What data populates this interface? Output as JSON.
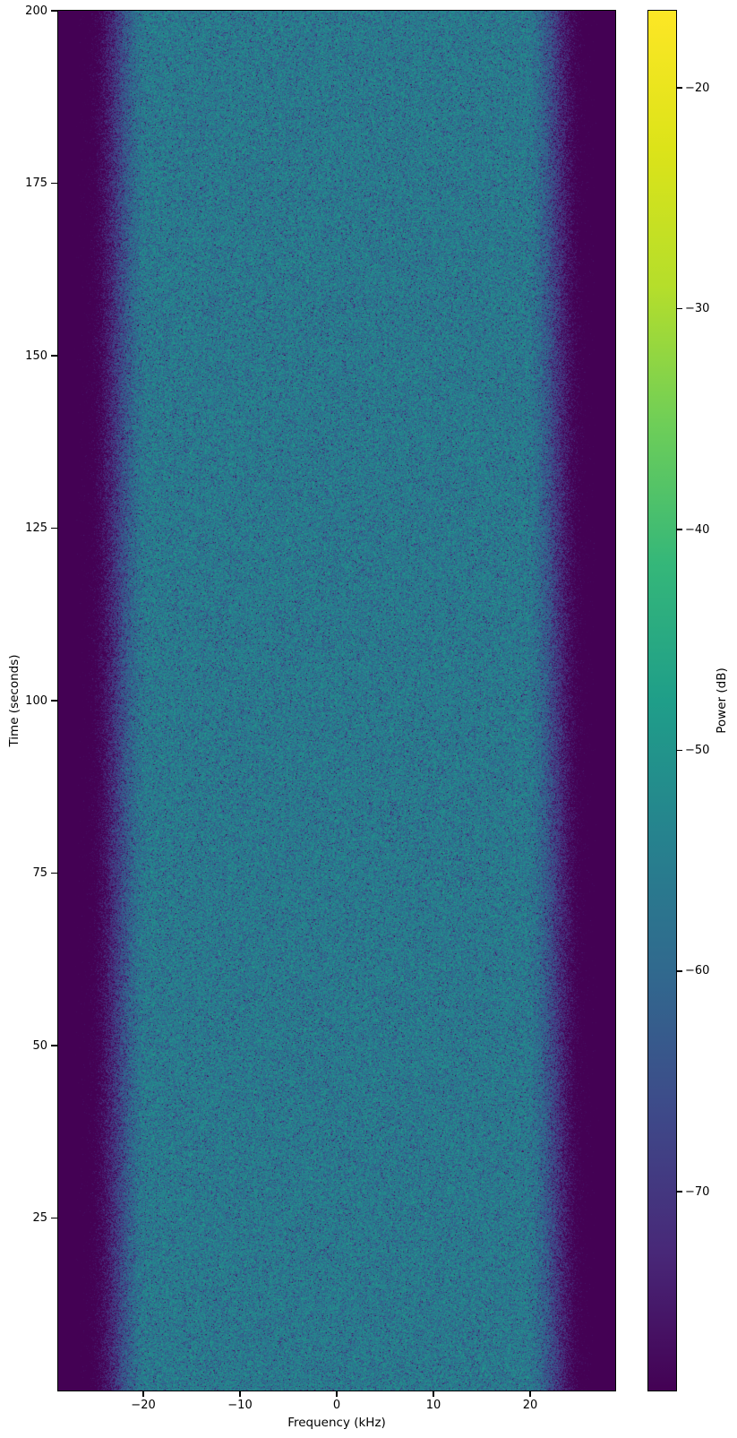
{
  "chart_data": {
    "type": "heatmap",
    "title": "",
    "xlabel": "Frequency (kHz)",
    "ylabel": "Time (seconds)",
    "colorbar_label": "Power (dB)",
    "x_range_khz": [
      -28.8,
      28.8
    ],
    "y_range_s": [
      0,
      200
    ],
    "power_range_db": [
      -79,
      -16.5
    ],
    "x_ticks": [
      {
        "value": -20,
        "label": "−20"
      },
      {
        "value": -10,
        "label": "−10"
      },
      {
        "value": 0,
        "label": "0"
      },
      {
        "value": 10,
        "label": "10"
      },
      {
        "value": 20,
        "label": "20"
      }
    ],
    "y_ticks": [
      {
        "value": 25,
        "label": "25"
      },
      {
        "value": 50,
        "label": "50"
      },
      {
        "value": 75,
        "label": "75"
      },
      {
        "value": 100,
        "label": "100"
      },
      {
        "value": 125,
        "label": "125"
      },
      {
        "value": 150,
        "label": "150"
      },
      {
        "value": 175,
        "label": "175"
      },
      {
        "value": 200,
        "label": "200"
      }
    ],
    "colorbar_ticks": [
      {
        "value": -20,
        "label": "−20"
      },
      {
        "value": -30,
        "label": "−30"
      },
      {
        "value": -40,
        "label": "−40"
      },
      {
        "value": -50,
        "label": "−50"
      },
      {
        "value": -60,
        "label": "−60"
      },
      {
        "value": -70,
        "label": "−70"
      }
    ],
    "colormap": "viridis",
    "colormap_stops": [
      "#440154",
      "#482878",
      "#3e4989",
      "#31688e",
      "#26828e",
      "#1f9e89",
      "#35b779",
      "#6ece58",
      "#b5de2b",
      "#dce319",
      "#fde725"
    ],
    "grid": false,
    "legend": false,
    "power_profile": {
      "description": "Band-limited noise spectrogram: flat passband around -56 dB for |f| < ~19.5 kHz, smooth ~30 dB roll-off between 19.5 and 26.5 kHz, stopband below -80 dB at band edges; uniform over time with exponential (Rayleigh-power) speckle noise.",
      "passband_base_db": -54,
      "passband_edge_khz": 19.5,
      "stopband_start_khz": 26.5,
      "rolloff_db": 30,
      "stopband_extra_db_per_khz": 5,
      "noise_model": "exponential power speckle (~5.6 dB std)"
    }
  }
}
